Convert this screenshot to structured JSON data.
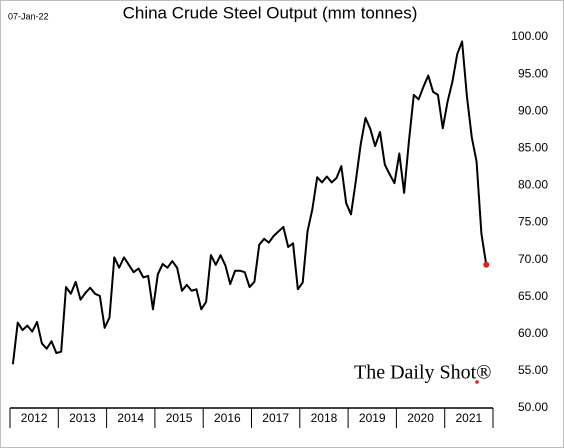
{
  "date": "07-Jan-22",
  "watermark": "The Daily Shot®",
  "chart_data": {
    "type": "line",
    "title": "China Crude Steel Output  (mm tonnes)",
    "x": [
      2012.06,
      2012.16,
      2012.26,
      2012.36,
      2012.46,
      2012.56,
      2012.66,
      2012.76,
      2012.86,
      2012.96,
      2013.06,
      2013.16,
      2013.26,
      2013.36,
      2013.46,
      2013.56,
      2013.66,
      2013.76,
      2013.86,
      2013.96,
      2014.06,
      2014.16,
      2014.26,
      2014.36,
      2014.46,
      2014.56,
      2014.66,
      2014.76,
      2014.86,
      2014.96,
      2015.06,
      2015.16,
      2015.26,
      2015.36,
      2015.46,
      2015.56,
      2015.66,
      2015.76,
      2015.86,
      2015.96,
      2016.06,
      2016.16,
      2016.26,
      2016.36,
      2016.46,
      2016.56,
      2016.66,
      2016.76,
      2016.86,
      2016.96,
      2017.06,
      2017.16,
      2017.26,
      2017.36,
      2017.46,
      2017.56,
      2017.66,
      2017.76,
      2017.86,
      2017.96,
      2018.06,
      2018.16,
      2018.26,
      2018.36,
      2018.46,
      2018.56,
      2018.66,
      2018.76,
      2018.86,
      2018.96,
      2019.06,
      2019.16,
      2019.26,
      2019.36,
      2019.46,
      2019.56,
      2019.66,
      2019.76,
      2019.86,
      2019.96,
      2020.06,
      2020.16,
      2020.26,
      2020.36,
      2020.46,
      2020.56,
      2020.66,
      2020.76,
      2020.86,
      2020.96,
      2021.06,
      2021.16,
      2021.26,
      2021.36,
      2021.46,
      2021.56,
      2021.66,
      2021.76,
      2021.86
    ],
    "series": [
      {
        "name": "China Crude Steel Output",
        "color": "#000000",
        "values": [
          55.9,
          61.5,
          60.5,
          61.1,
          60.3,
          61.6,
          58.7,
          58.0,
          59.0,
          57.4,
          57.6,
          66.3,
          65.4,
          67.0,
          64.6,
          65.5,
          66.2,
          65.4,
          65.1,
          60.8,
          62.2,
          70.3,
          68.9,
          70.3,
          69.3,
          68.3,
          68.8,
          67.6,
          67.8,
          63.3,
          68.0,
          69.4,
          68.9,
          69.8,
          68.9,
          65.8,
          66.6,
          65.8,
          66.0,
          63.3,
          64.3,
          70.6,
          69.3,
          70.6,
          69.2,
          66.7,
          68.5,
          68.5,
          68.3,
          66.3,
          67.0,
          72.0,
          72.8,
          72.3,
          73.2,
          73.8,
          74.4,
          71.7,
          72.2,
          66.0,
          66.9,
          73.8,
          76.8,
          81.1,
          80.4,
          81.2,
          80.4,
          81.0,
          82.6,
          77.6,
          76.1,
          80.6,
          85.5,
          89.1,
          87.6,
          85.3,
          87.2,
          82.8,
          81.5,
          80.3,
          84.3,
          79.0,
          86.0,
          92.2,
          91.6,
          93.3,
          94.8,
          92.6,
          92.2,
          87.7,
          91.3,
          94.0,
          97.7,
          99.4,
          92.0,
          86.5,
          83.2,
          73.5,
          69.3
        ]
      }
    ],
    "last_point_color": "#e0201b",
    "xlim": [
      2012,
      2022
    ],
    "xticks": [
      {
        "value": 2012.5,
        "label": "2012"
      },
      {
        "value": 2013.5,
        "label": "2013"
      },
      {
        "value": 2014.5,
        "label": "2014"
      },
      {
        "value": 2015.5,
        "label": "2015"
      },
      {
        "value": 2016.5,
        "label": "2016"
      },
      {
        "value": 2017.5,
        "label": "2017"
      },
      {
        "value": 2018.5,
        "label": "2018"
      },
      {
        "value": 2019.5,
        "label": "2019"
      },
      {
        "value": 2020.5,
        "label": "2020"
      },
      {
        "value": 2021.5,
        "label": "2021"
      }
    ],
    "ylim": [
      50,
      100
    ],
    "yticks": [
      {
        "value": 50,
        "label": "50.00"
      },
      {
        "value": 55,
        "label": "55.00"
      },
      {
        "value": 60,
        "label": "60.00"
      },
      {
        "value": 65,
        "label": "65.00"
      },
      {
        "value": 70,
        "label": "70.00"
      },
      {
        "value": 75,
        "label": "75.00"
      },
      {
        "value": 80,
        "label": "80.00"
      },
      {
        "value": 85,
        "label": "85.00"
      },
      {
        "value": 90,
        "label": "90.00"
      },
      {
        "value": 95,
        "label": "95.00"
      },
      {
        "value": 100,
        "label": "100.00"
      }
    ]
  }
}
